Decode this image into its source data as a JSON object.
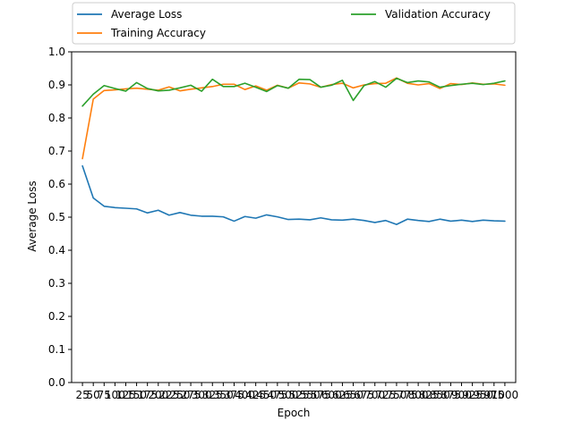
{
  "chart_data": {
    "type": "line",
    "xlabel": "Epoch",
    "ylabel": "Average Loss",
    "ylim": [
      0.0,
      1.0
    ],
    "yticks": [
      "0.0",
      "0.1",
      "0.2",
      "0.3",
      "0.4",
      "0.5",
      "0.6",
      "0.7",
      "0.8",
      "0.9",
      "1.0"
    ],
    "x": [
      25,
      50,
      75,
      100,
      125,
      150,
      175,
      200,
      225,
      250,
      275,
      300,
      325,
      350,
      375,
      400,
      425,
      450,
      475,
      500,
      525,
      550,
      575,
      600,
      625,
      650,
      675,
      700,
      725,
      750,
      775,
      800,
      825,
      850,
      875,
      900,
      925,
      950,
      975,
      1000
    ],
    "grid": false,
    "legend_position": "top",
    "series": [
      {
        "name": "Average Loss",
        "color": "#1f77b4",
        "values": [
          0.655,
          0.558,
          0.533,
          0.529,
          0.527,
          0.525,
          0.513,
          0.521,
          0.506,
          0.514,
          0.506,
          0.503,
          0.503,
          0.501,
          0.488,
          0.502,
          0.497,
          0.507,
          0.501,
          0.493,
          0.494,
          0.492,
          0.498,
          0.492,
          0.491,
          0.494,
          0.49,
          0.484,
          0.49,
          0.478,
          0.494,
          0.49,
          0.487,
          0.494,
          0.488,
          0.491,
          0.487,
          0.491,
          0.489,
          0.488
        ]
      },
      {
        "name": "Training Accuracy",
        "color": "#ff7f0e",
        "values": [
          0.677,
          0.857,
          0.883,
          0.885,
          0.888,
          0.89,
          0.887,
          0.884,
          0.894,
          0.882,
          0.887,
          0.891,
          0.895,
          0.902,
          0.902,
          0.886,
          0.897,
          0.884,
          0.899,
          0.89,
          0.906,
          0.903,
          0.893,
          0.901,
          0.905,
          0.891,
          0.9,
          0.904,
          0.905,
          0.921,
          0.905,
          0.9,
          0.904,
          0.889,
          0.904,
          0.901,
          0.906,
          0.902,
          0.903,
          0.899
        ]
      },
      {
        "name": "Validation Accuracy",
        "color": "#2ca02c",
        "values": [
          0.836,
          0.872,
          0.898,
          0.889,
          0.881,
          0.907,
          0.889,
          0.882,
          0.884,
          0.891,
          0.899,
          0.881,
          0.917,
          0.895,
          0.895,
          0.905,
          0.893,
          0.88,
          0.898,
          0.89,
          0.917,
          0.916,
          0.893,
          0.899,
          0.914,
          0.853,
          0.898,
          0.91,
          0.893,
          0.92,
          0.907,
          0.912,
          0.909,
          0.893,
          0.898,
          0.902,
          0.905,
          0.901,
          0.905,
          0.912
        ]
      }
    ]
  }
}
